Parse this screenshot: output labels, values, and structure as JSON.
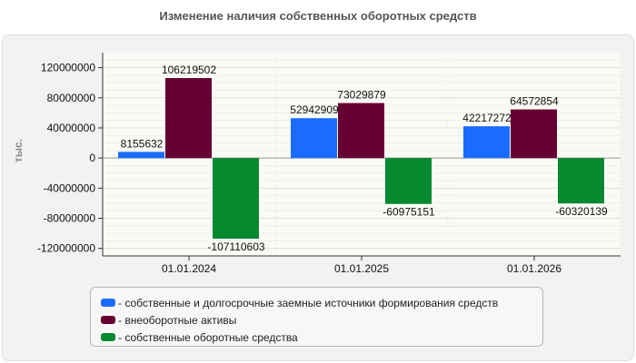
{
  "chart_data": {
    "type": "bar",
    "title": "Изменение наличия собственных оборотных средств",
    "ylabel": "тыс.",
    "xlabel": "",
    "categories": [
      "01.01.2024",
      "01.01.2025",
      "01.01.2026"
    ],
    "ylim": [
      -130000000,
      140000000
    ],
    "yticks": [
      120000000,
      80000000,
      40000000,
      0,
      -40000000,
      -80000000,
      -120000000
    ],
    "grid": true,
    "legend_position": "bottom",
    "series": [
      {
        "name": "- собственные и долгосрочные заемные источники формирования средств",
        "color": "#1a6cff",
        "values": [
          8155632,
          52942909,
          42217272
        ]
      },
      {
        "name": "- внеоборотные активы",
        "color": "#660033",
        "values": [
          106219502,
          73029879,
          64572854
        ]
      },
      {
        "name": "- собственные оборотные средства",
        "color": "#06892f",
        "values": [
          -107110603,
          -60975151,
          -60320139
        ]
      }
    ]
  }
}
